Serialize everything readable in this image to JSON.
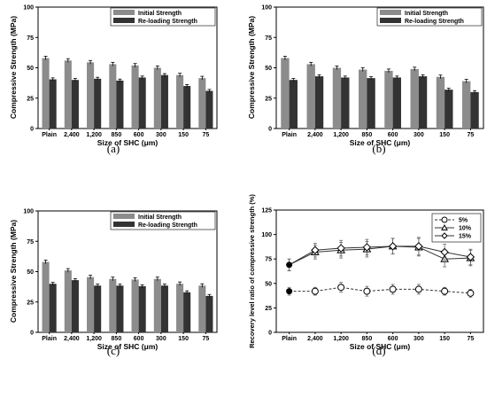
{
  "chart_data": [
    {
      "type": "bar",
      "panel_label": "(a)",
      "categories": [
        "Plain",
        "2,400",
        "1,200",
        "850",
        "600",
        "300",
        "150",
        "75"
      ],
      "series": [
        {
          "name": "Initial Strength",
          "values": [
            58,
            56,
            54.5,
            53,
            52,
            50,
            44,
            41.5
          ],
          "errors": [
            1.5,
            1.5,
            1.5,
            1.5,
            1.5,
            1.5,
            1.5,
            1.5
          ],
          "color": "#8c8c8c"
        },
        {
          "name": "Re-loading Strength",
          "values": [
            40.5,
            40,
            41,
            39.5,
            42,
            44,
            35,
            31
          ],
          "errors": [
            1.2,
            1.2,
            1.2,
            1.2,
            1.2,
            1.2,
            1.2,
            1.2
          ],
          "color": "#333333"
        }
      ],
      "xlabel": "Size of SHC (μm)",
      "ylabel": "Compressive Strength (MPa)",
      "ylim": [
        0,
        100
      ],
      "yticks": [
        "0",
        "25",
        "50",
        "75",
        "100"
      ],
      "legend_position": "top-right",
      "grid": false
    },
    {
      "type": "bar",
      "panel_label": "(b)",
      "categories": [
        "Plain",
        "2,400",
        "1,200",
        "850",
        "600",
        "300",
        "150",
        "75"
      ],
      "series": [
        {
          "name": "Initial Strength",
          "values": [
            58,
            53,
            50,
            48.5,
            47.5,
            49,
            42.5,
            39
          ],
          "errors": [
            1.5,
            1.5,
            1.5,
            1.5,
            1.5,
            1.5,
            1.5,
            1.5
          ],
          "color": "#8c8c8c"
        },
        {
          "name": "Re-loading Strength",
          "values": [
            40,
            43,
            42,
            41.5,
            42,
            43,
            32,
            30
          ],
          "errors": [
            1.2,
            1.2,
            1.2,
            1.2,
            1.2,
            1.2,
            1.2,
            1.2
          ],
          "color": "#333333"
        }
      ],
      "xlabel": "Size of SHC (μm)",
      "ylabel": "Compressive Strength (MPa)",
      "ylim": [
        0,
        100
      ],
      "yticks": [
        "0",
        "25",
        "50",
        "75",
        "100"
      ],
      "legend_position": "top-right",
      "grid": false
    },
    {
      "type": "bar",
      "panel_label": "(c)",
      "categories": [
        "Plain",
        "2,400",
        "1,200",
        "850",
        "600",
        "300",
        "150",
        "75"
      ],
      "series": [
        {
          "name": "Initial Strength",
          "values": [
            58,
            51,
            45.5,
            44,
            43.5,
            44,
            40,
            38.5
          ],
          "errors": [
            1.5,
            1.5,
            1.5,
            1.5,
            1.5,
            1.5,
            1.5,
            1.5
          ],
          "color": "#8c8c8c"
        },
        {
          "name": "Re-loading Strength",
          "values": [
            40,
            43,
            38.5,
            38.5,
            38,
            38.5,
            33,
            30
          ],
          "errors": [
            1.2,
            1.2,
            1.2,
            1.2,
            1.2,
            1.2,
            1.2,
            1.2
          ],
          "color": "#333333"
        }
      ],
      "xlabel": "Size of SHC (μm)",
      "ylabel": "Compressive Strength (MPa)",
      "ylim": [
        0,
        100
      ],
      "yticks": [
        "0",
        "25",
        "50",
        "75",
        "100"
      ],
      "legend_position": "top-right",
      "grid": false
    },
    {
      "type": "line",
      "panel_label": "(d)",
      "categories": [
        "Plain",
        "2,400",
        "1,200",
        "850",
        "600",
        "300",
        "150",
        "75"
      ],
      "plain_point": {
        "category": "Plain",
        "value": 69
      },
      "plain_point_5": {
        "category": "Plain",
        "value": 42
      },
      "series": [
        {
          "name": "5%",
          "marker": "circle",
          "dash": true,
          "values": [
            42,
            42,
            46,
            42,
            44,
            44,
            42,
            40
          ],
          "errors": [
            4,
            4,
            5,
            5,
            5,
            5,
            4,
            4
          ]
        },
        {
          "name": "10%",
          "marker": "triangle",
          "dash": false,
          "values": [
            69,
            82,
            84,
            85,
            88,
            87,
            75,
            76
          ],
          "errors": [
            6,
            7,
            8,
            8,
            8,
            9,
            8,
            8
          ]
        },
        {
          "name": "15%",
          "marker": "diamond",
          "dash": false,
          "values": [
            69,
            84,
            86,
            87,
            88,
            88,
            82,
            77
          ],
          "errors": [
            6,
            7,
            8,
            8,
            8,
            9,
            8,
            8
          ]
        }
      ],
      "xlabel": "Size of SHC (μm)",
      "ylabel": "Recovery level ratio of compressive strength (%)",
      "ylim": [
        0,
        125
      ],
      "yticks": [
        "0",
        "25",
        "50",
        "75",
        "100",
        "125"
      ],
      "legend_position": "top-right",
      "grid": false
    }
  ]
}
